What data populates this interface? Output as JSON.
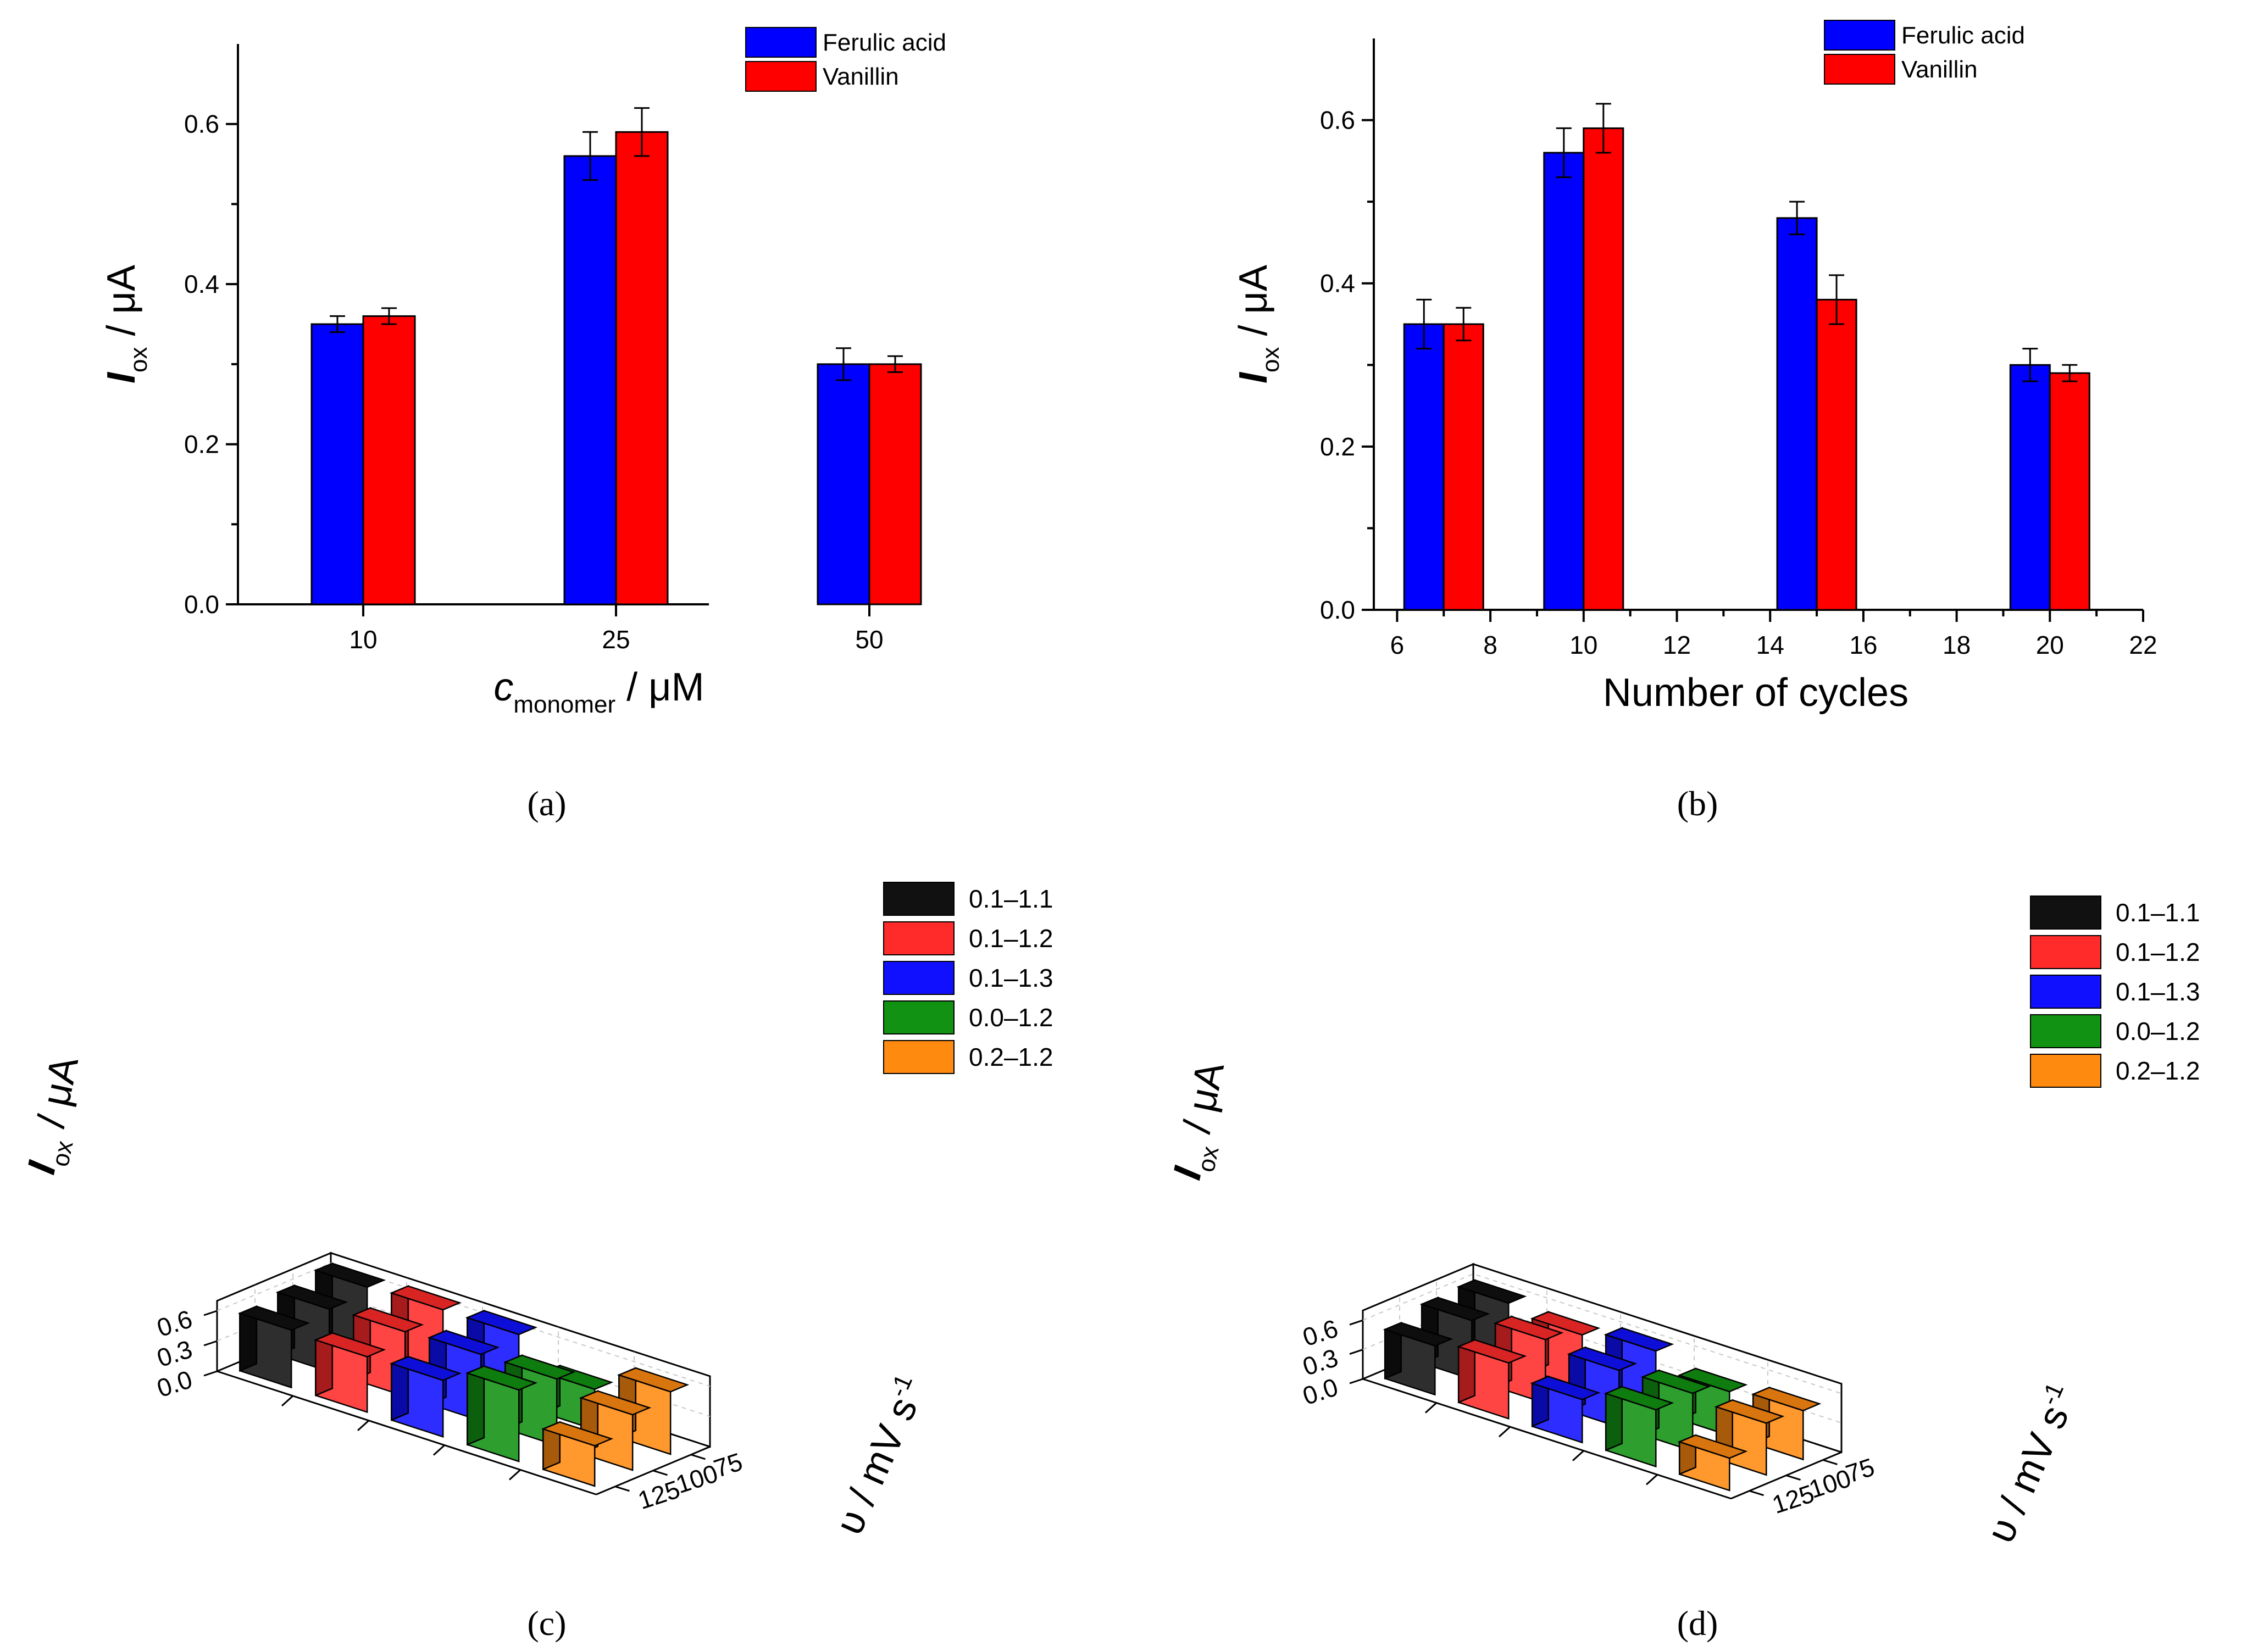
{
  "panel_labels": [
    "(a)",
    "(b)",
    "(c)",
    "(d)"
  ],
  "colors": {
    "ferulic": "#0000ff",
    "vanillin": "#ff0000",
    "black": "#111111",
    "red": "#ff2a2a",
    "blue": "#1010ff",
    "green": "#129212",
    "orange": "#ff8a10"
  },
  "chart_data": [
    {
      "type": "bar",
      "panel": "(a)",
      "categories": [
        "10",
        "25",
        "50"
      ],
      "series": [
        {
          "name": "Ferulic acid",
          "values": [
            0.35,
            0.56,
            0.3
          ],
          "errors": [
            0.01,
            0.03,
            0.02
          ]
        },
        {
          "name": "Vanillin",
          "values": [
            0.36,
            0.59,
            0.3
          ],
          "errors": [
            0.01,
            0.03,
            0.01
          ]
        }
      ],
      "xlabel": {
        "main": "c",
        "sub": "monomer",
        "unit": " / μM"
      },
      "ylabel": {
        "main": "I",
        "sub": "ox",
        "unit": " / μA"
      },
      "yticks": [
        "0.0",
        "0.2",
        "0.4",
        "0.6"
      ],
      "ylim": [
        0,
        0.7
      ],
      "legend": "top-right"
    },
    {
      "type": "bar",
      "panel": "(b)",
      "x": [
        7,
        10,
        15,
        20
      ],
      "series": [
        {
          "name": "Ferulic acid",
          "values": [
            0.35,
            0.56,
            0.48,
            0.3
          ],
          "errors": [
            0.03,
            0.03,
            0.02,
            0.02
          ]
        },
        {
          "name": "Vanillin",
          "values": [
            0.35,
            0.59,
            0.38,
            0.29
          ],
          "errors": [
            0.02,
            0.03,
            0.03,
            0.01
          ]
        }
      ],
      "xlabel": {
        "main": "Number of cycles"
      },
      "ylabel": {
        "main": "I",
        "sub": "ox",
        "unit": " / μA"
      },
      "xticks": [
        "6",
        "8",
        "10",
        "12",
        "14",
        "16",
        "18",
        "20",
        "22"
      ],
      "xlim": [
        5.5,
        22
      ],
      "yticks": [
        "0.0",
        "0.2",
        "0.4",
        "0.6"
      ],
      "ylim": [
        0,
        0.7
      ],
      "legend": "top-left"
    },
    {
      "type": "bar",
      "panel": "(c)",
      "view": "3d",
      "scan_rates": [
        "75",
        "100",
        "125"
      ],
      "series": [
        {
          "name": "0.1–1.1",
          "values": [
            0.68,
            0.62,
            0.57
          ]
        },
        {
          "name": "0.1–1.2",
          "values": [
            0.7,
            0.64,
            0.55
          ]
        },
        {
          "name": "0.1–1.3",
          "values": [
            0.7,
            0.66,
            0.56
          ]
        },
        {
          "name": "0.0–1.2",
          "values": [
            0.4,
            0.66,
            0.71
          ]
        },
        {
          "name": "0.2–1.2",
          "values": [
            0.62,
            0.55,
            0.4
          ]
        }
      ],
      "ylabel": {
        "main": "I",
        "sub": "ox",
        "unit": " / μA"
      },
      "zlabel": "υ / mV s",
      "zlabel_sup": "-1",
      "zticks": [
        "0.0",
        "0.3",
        "0.6"
      ],
      "zlim": [
        0,
        0.7
      ],
      "legend": "top-right"
    },
    {
      "type": "bar",
      "panel": "(d)",
      "view": "3d",
      "scan_rates": [
        "75",
        "100",
        "125"
      ],
      "series": [
        {
          "name": "0.1–1.1",
          "values": [
            0.62,
            0.6,
            0.5
          ]
        },
        {
          "name": "0.1–1.2",
          "values": [
            0.54,
            0.65,
            0.57
          ]
        },
        {
          "name": "0.1–1.3",
          "values": [
            0.62,
            0.58,
            0.44
          ]
        },
        {
          "name": "0.0–1.2",
          "values": [
            0.45,
            0.59,
            0.58
          ]
        },
        {
          "name": "0.2–1.2",
          "values": [
            0.5,
            0.53,
            0.33
          ]
        }
      ],
      "ylabel": {
        "main": "I",
        "sub": "ox",
        "unit": " / μA"
      },
      "zlabel": "υ / mV s",
      "zlabel_sup": "-1",
      "zticks": [
        "0.0",
        "0.3",
        "0.6"
      ],
      "zlim": [
        0,
        0.7
      ],
      "legend": "top-right"
    }
  ]
}
